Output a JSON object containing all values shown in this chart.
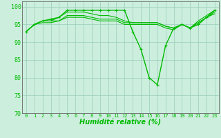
{
  "xlabel": "Humidité relative (%)",
  "bg_color": "#cceedd",
  "grid_color": "#99ccbb",
  "line_color": "#00bb00",
  "marker": "+",
  "ylim": [
    70,
    101.5
  ],
  "xlim": [
    -0.5,
    23.5
  ],
  "yticks": [
    70,
    75,
    80,
    85,
    90,
    95,
    100
  ],
  "xticks": [
    0,
    1,
    2,
    3,
    4,
    5,
    6,
    7,
    8,
    9,
    10,
    11,
    12,
    13,
    14,
    15,
    16,
    17,
    18,
    19,
    20,
    21,
    22,
    23
  ],
  "series": [
    {
      "x": [
        0,
        1,
        2,
        3,
        4,
        5,
        6,
        7,
        8,
        9,
        10,
        11,
        12,
        13,
        14,
        15,
        16,
        17,
        18,
        19,
        20,
        21,
        22,
        23
      ],
      "y": [
        93,
        95,
        96,
        96.5,
        97,
        99,
        99,
        99,
        99,
        99,
        99,
        99,
        99,
        93,
        88,
        80,
        78,
        89,
        94,
        95,
        94,
        95,
        97,
        99
      ],
      "marker": true,
      "lw": 1.0
    },
    {
      "x": [
        0,
        1,
        2,
        3,
        4,
        5,
        6,
        7,
        8,
        9,
        10,
        11,
        12,
        13,
        14,
        15,
        16,
        17,
        18,
        19,
        20,
        21,
        22,
        23
      ],
      "y": [
        93,
        95,
        96,
        96,
        97,
        98.5,
        98.5,
        98.5,
        98,
        97.5,
        97.5,
        97,
        96,
        95.5,
        95.5,
        95.5,
        95.5,
        94.5,
        94,
        95,
        94,
        96,
        97.5,
        99
      ],
      "marker": false,
      "lw": 0.8
    },
    {
      "x": [
        0,
        1,
        2,
        3,
        4,
        5,
        6,
        7,
        8,
        9,
        10,
        11,
        12,
        13,
        14,
        15,
        16,
        17,
        18,
        19,
        20,
        21,
        22,
        23
      ],
      "y": [
        93,
        95,
        96,
        96,
        96,
        97.5,
        97.5,
        97.5,
        97,
        96.5,
        96.5,
        96.5,
        95.5,
        95.5,
        95.5,
        95.5,
        95.5,
        94.5,
        94,
        95,
        94,
        95.5,
        97,
        98.5
      ],
      "marker": false,
      "lw": 0.8
    },
    {
      "x": [
        0,
        1,
        2,
        3,
        4,
        5,
        6,
        7,
        8,
        9,
        10,
        11,
        12,
        13,
        14,
        15,
        16,
        17,
        18,
        19,
        20,
        21,
        22,
        23
      ],
      "y": [
        93,
        95,
        95.5,
        95.5,
        96,
        97,
        97,
        97,
        96.5,
        96,
        96,
        96,
        95,
        95,
        95,
        95,
        95,
        94,
        93.5,
        95,
        94,
        95.5,
        97,
        98
      ],
      "marker": false,
      "lw": 0.8
    }
  ]
}
